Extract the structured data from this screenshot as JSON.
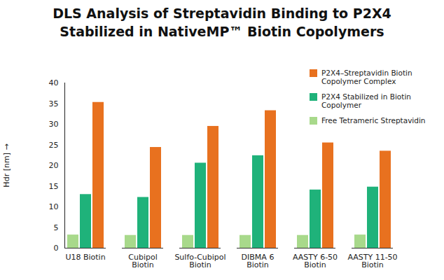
{
  "chart_data": {
    "type": "bar",
    "title": "DLS Analysis of Streptavidin Binding to P2X4\nStabilized in NativeMP™ Biotin Copolymers",
    "y_label": "Hdr [nm]",
    "categories": [
      "U18 Biotin",
      "Cubipol\nBiotin",
      "Sulfo-Cubipol\nBiotin",
      "DIBMA 6\nBiotin",
      "AASTY 6-50\nBiotin",
      "AASTY 11-50\nBiotin"
    ],
    "series": [
      {
        "name": "Free Tetrameric Streptavidin",
        "color": "#a8d98b",
        "values": [
          3.2,
          3.1,
          3.1,
          3.1,
          3.1,
          3.2
        ]
      },
      {
        "name": "P2X4 Stabilized in Biotin Copolymer",
        "color": "#1fb27a",
        "values": [
          13.0,
          12.3,
          20.6,
          22.4,
          14.1,
          14.8
        ]
      },
      {
        "name": "P2X4–Streptavidin Biotin Copolymer Complex",
        "color": "#e8711f",
        "values": [
          35.3,
          24.4,
          29.5,
          33.3,
          25.5,
          23.5
        ]
      }
    ],
    "ylim": [
      0,
      40
    ],
    "yticks": [
      0,
      5,
      10,
      15,
      20,
      25,
      30,
      35,
      40
    ],
    "grid": false,
    "legend": "top-right"
  }
}
